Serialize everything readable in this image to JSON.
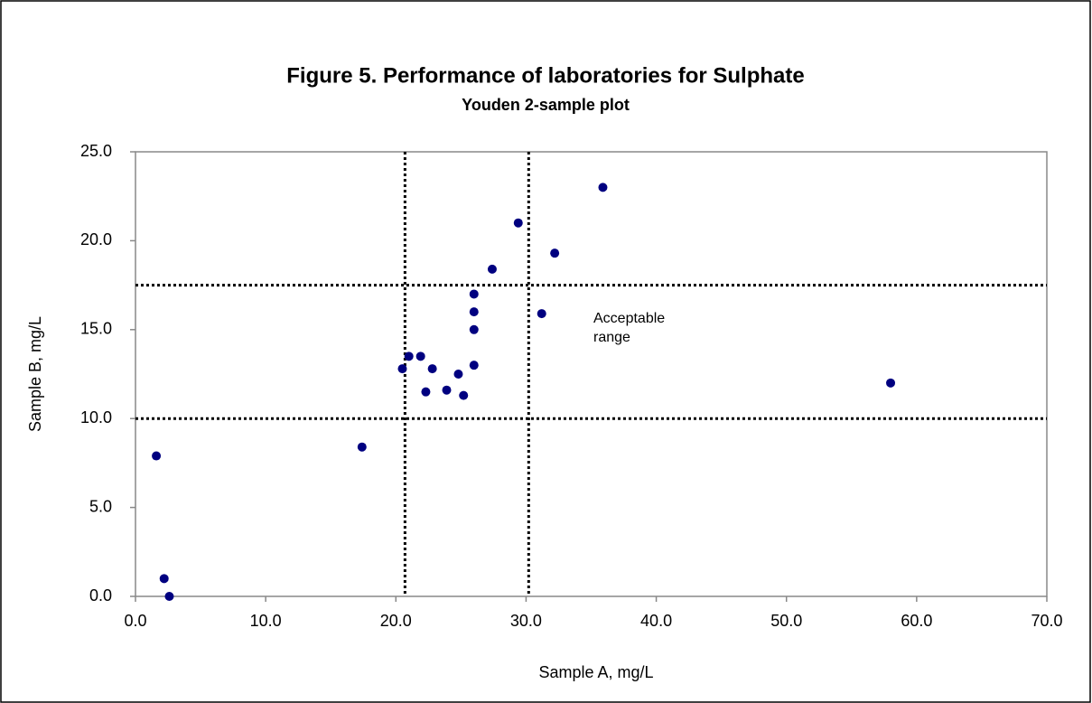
{
  "chart_data": {
    "type": "scatter",
    "title": "Figure 5. Performance of laboratories for Sulphate",
    "subtitle": "Youden 2-sample plot",
    "x_label": "Sample A, mg/L",
    "y_label": "Sample B, mg/L",
    "annotation": "Acceptable range",
    "color": "#000080",
    "x": [
      1.6,
      2.2,
      2.6,
      17.4,
      20.5,
      21.0,
      21.9,
      22.3,
      22.8,
      23.9,
      24.8,
      25.2,
      26.0,
      26.0,
      26.0,
      26.0,
      27.4,
      29.4,
      31.2,
      32.2,
      35.9,
      58.0
    ],
    "values": [
      7.9,
      1.0,
      0.0,
      8.4,
      12.8,
      13.5,
      13.5,
      11.5,
      12.8,
      11.6,
      12.5,
      11.3,
      17.0,
      16.0,
      15.0,
      13.0,
      18.4,
      21.0,
      15.9,
      19.3,
      23.0,
      12.0
    ],
    "x_lines": [
      20.7,
      30.2
    ],
    "y_lines": [
      10.0,
      17.5
    ],
    "xlim": [
      0,
      70
    ],
    "ylim": [
      0,
      25
    ],
    "xticks": [
      {
        "value": 0,
        "label": "0.0"
      },
      {
        "value": 10,
        "label": "10.0"
      },
      {
        "value": 20,
        "label": "20.0"
      },
      {
        "value": 30,
        "label": "30.0"
      },
      {
        "value": 40,
        "label": "40.0"
      },
      {
        "value": 50,
        "label": "50.0"
      },
      {
        "value": 60,
        "label": "60.0"
      },
      {
        "value": 70,
        "label": "70.0"
      }
    ],
    "yticks": [
      {
        "value": 0,
        "label": "0.0"
      },
      {
        "value": 5,
        "label": "5.0"
      },
      {
        "value": 10,
        "label": "10.0"
      },
      {
        "value": 15,
        "label": "15.0"
      },
      {
        "value": 20,
        "label": "20.0"
      },
      {
        "value": 25,
        "label": "25.0"
      }
    ],
    "grid": false
  }
}
